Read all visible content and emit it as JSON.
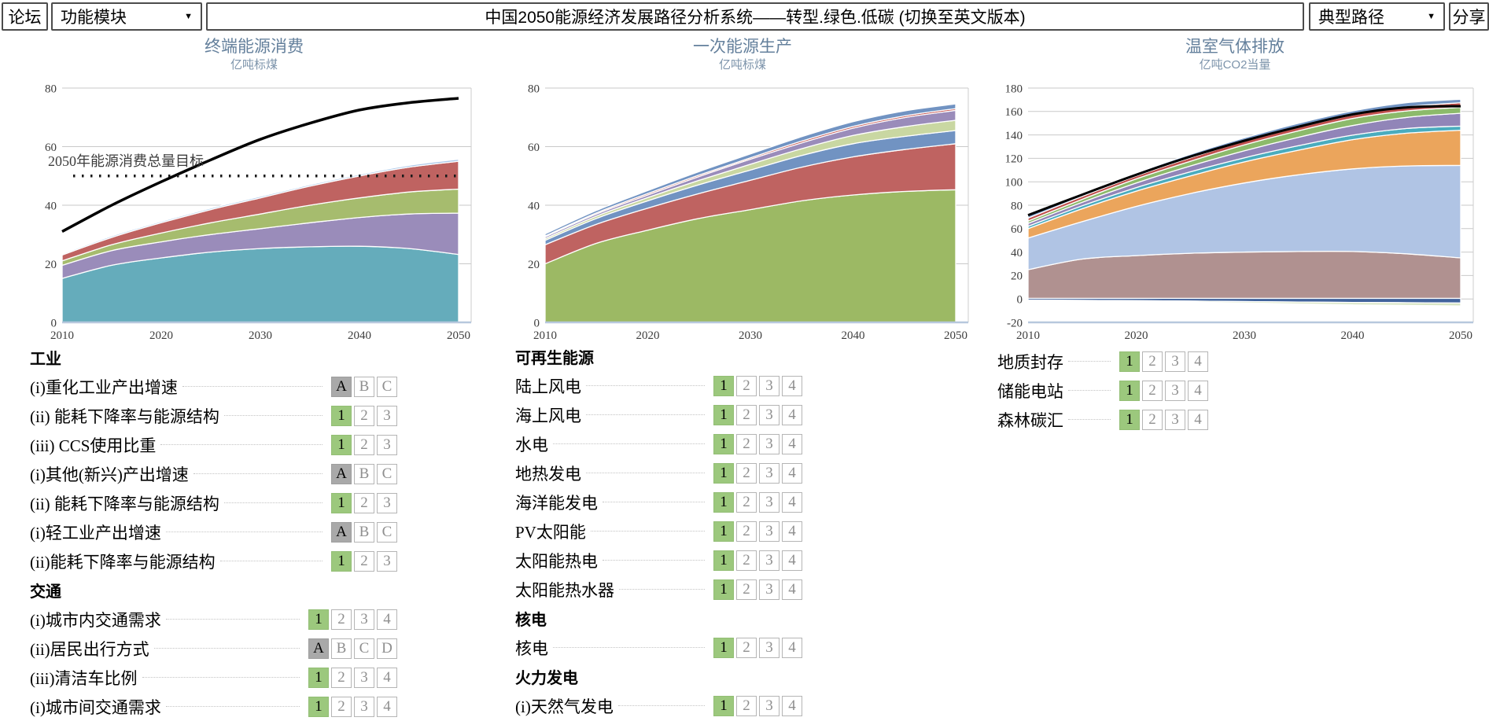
{
  "topbar": {
    "forum": "论坛",
    "modules": "功能模块",
    "title": "中国2050能源经济发展路径分析系统——转型.绿色.低碳 (切换至英文版本)",
    "paths": "典型路径",
    "share": "分享",
    "dropdown_icon": "▼"
  },
  "chart_data": [
    {
      "type": "area",
      "id": "final-energy-consumption",
      "title": "终端能源消费",
      "unit": "亿吨标煤",
      "x": [
        2010,
        2015,
        2020,
        2025,
        2030,
        2035,
        2040,
        2045,
        2050
      ],
      "xticks": [
        2010,
        2020,
        2030,
        2040,
        2050
      ],
      "ylim": [
        0,
        80
      ],
      "yticks": [
        0,
        20,
        40,
        60,
        80
      ],
      "stacking": "values are cumulative stack tops",
      "layers": [
        {
          "name": "teal-band",
          "color": "#65acbb",
          "bottom": 0,
          "top": [
            15,
            19.5,
            22,
            24,
            25.2,
            25.8,
            26,
            25.2,
            23.2
          ]
        },
        {
          "name": "purple-band",
          "color": "#9a8cba",
          "bottom": "prev",
          "top": [
            19.5,
            24.5,
            27.5,
            30,
            32,
            34,
            35.8,
            37,
            37.3
          ]
        },
        {
          "name": "green-band",
          "color": "#a6bc6e",
          "bottom": "prev",
          "top": [
            21,
            26.5,
            30.5,
            34,
            37,
            40,
            42.5,
            44.5,
            45.5
          ]
        },
        {
          "name": "red-band",
          "color": "#bf6361",
          "bottom": "prev",
          "top": [
            23,
            29,
            34,
            38.5,
            42.5,
            46.5,
            50,
            53,
            55
          ]
        },
        {
          "name": "lightblue-band",
          "color": "#abc7e8",
          "bottom": "prev",
          "top": [
            23.4,
            29.5,
            34.5,
            39,
            43,
            47,
            50.5,
            53.6,
            55.7
          ]
        }
      ],
      "lines": [
        {
          "name": "reference-line",
          "color": "#000000",
          "width": 3.5,
          "values": [
            31,
            40,
            48,
            55.5,
            62.5,
            68,
            72.5,
            75,
            76.5
          ]
        }
      ],
      "target_line": {
        "value": 50,
        "label": "2050年能源消费总量目标"
      }
    },
    {
      "type": "area",
      "id": "primary-energy-production",
      "title": "一次能源生产",
      "unit": "亿吨标煤",
      "x": [
        2010,
        2015,
        2020,
        2025,
        2030,
        2035,
        2040,
        2045,
        2050
      ],
      "xticks": [
        2010,
        2020,
        2030,
        2040,
        2050
      ],
      "ylim": [
        0,
        80
      ],
      "yticks": [
        0,
        20,
        40,
        60,
        80
      ],
      "stacking": "values are cumulative stack tops",
      "layers": [
        {
          "name": "green-band",
          "color": "#9cb964",
          "bottom": 0,
          "top": [
            20,
            27,
            31.5,
            35.5,
            38.5,
            41.5,
            43.5,
            44.7,
            45.3
          ]
        },
        {
          "name": "red-band",
          "color": "#bf6361",
          "bottom": "prev",
          "top": [
            26.5,
            33.5,
            39,
            44,
            48.5,
            53,
            56.5,
            59,
            61
          ]
        },
        {
          "name": "blue-band",
          "color": "#7193c2",
          "bottom": "prev",
          "top": [
            28,
            35.5,
            41.5,
            47,
            52,
            57,
            61,
            63.5,
            65.5
          ]
        },
        {
          "name": "palegreen-band",
          "color": "#c9d7a2",
          "bottom": "prev",
          "top": [
            28.6,
            36.3,
            42.6,
            48.5,
            54,
            59.3,
            63.8,
            66.8,
            69
          ]
        },
        {
          "name": "purple-band",
          "color": "#9a8cba",
          "bottom": "prev",
          "top": [
            29.2,
            37,
            43.5,
            49.8,
            55.7,
            61.3,
            66.3,
            69.9,
            72.4
          ]
        },
        {
          "name": "red-stripe",
          "color": "#c0504d",
          "bottom": "prev",
          "top": [
            29.5,
            37.4,
            44,
            50.3,
            56.2,
            61.9,
            66.9,
            70.5,
            73
          ]
        },
        {
          "name": "blue-top-band",
          "color": "#7193c2",
          "bottom": "prev",
          "top": [
            30.2,
            38.2,
            45,
            51.5,
            57.5,
            63.4,
            68.5,
            72.2,
            74.6
          ]
        }
      ],
      "lines": []
    },
    {
      "type": "area",
      "id": "greenhouse-gas-emissions",
      "title": "温室气体排放",
      "unit": "亿吨CO2当量",
      "x": [
        2010,
        2015,
        2020,
        2025,
        2030,
        2035,
        2040,
        2045,
        2050
      ],
      "xticks": [
        2010,
        2020,
        2030,
        2040,
        2050
      ],
      "ylim": [
        -20,
        180
      ],
      "yticks": [
        -20,
        0,
        20,
        40,
        60,
        80,
        100,
        120,
        140,
        160,
        180
      ],
      "stacking": "values are cumulative stack tops; negative layers stack downward",
      "layers": [
        {
          "name": "mauve-band",
          "color": "#b09190",
          "bottom": 0.5,
          "top": [
            25,
            34,
            37,
            39,
            40,
            40.5,
            40.5,
            38.5,
            35
          ]
        },
        {
          "name": "periwinkle-band",
          "color": "#b0c4e4",
          "bottom": "prev",
          "top": [
            52,
            66,
            79,
            90,
            99,
            106,
            111,
            113.5,
            114
          ]
        },
        {
          "name": "orange-band",
          "color": "#eba55c",
          "bottom": "prev",
          "top": [
            60,
            77,
            92,
            105,
            117,
            127,
            136,
            141.5,
            144
          ]
        },
        {
          "name": "teal-stripe",
          "color": "#4aacbe",
          "bottom": "prev",
          "top": [
            62,
            79.5,
            95,
            108.5,
            120.5,
            130.8,
            139.8,
            145.5,
            147.5
          ]
        },
        {
          "name": "purple-band",
          "color": "#9185b8",
          "bottom": "prev",
          "top": [
            64.5,
            82.5,
            99,
            113.5,
            126.5,
            138,
            148,
            155,
            158.5
          ]
        },
        {
          "name": "green-band",
          "color": "#8cba6b",
          "bottom": "prev",
          "top": [
            66.5,
            85,
            102.5,
            117.5,
            131.5,
            143.5,
            154,
            160.5,
            163.5
          ]
        },
        {
          "name": "red-stripe",
          "color": "#c0504d",
          "bottom": "prev",
          "top": [
            69,
            87.5,
            105,
            120.5,
            134.5,
            146.5,
            157,
            164,
            167.5
          ]
        },
        {
          "name": "blue-top-band",
          "color": "#7193c2",
          "bottom": "prev",
          "top": [
            71,
            90,
            107.5,
            123.5,
            137.5,
            150,
            160.5,
            167.5,
            170.5
          ]
        },
        {
          "name": "sequestration-dark-blue-band",
          "color": "#41639c",
          "bottom": [
            -1,
            -1.2,
            -1.5,
            -1.8,
            -2.2,
            -2.6,
            -3,
            -3.2,
            -3.5
          ],
          "top": 0.5
        },
        {
          "name": "sink-light-green-band",
          "color": "#d9e6c5",
          "bottom": [
            -1.3,
            -1.6,
            -2.1,
            -2.7,
            -3.4,
            -4.2,
            -5,
            -5.5,
            -6
          ],
          "top": [
            -1,
            -1.2,
            -1.5,
            -1.8,
            -2.2,
            -2.6,
            -3,
            -3.2,
            -3.5
          ]
        }
      ],
      "lines": [
        {
          "name": "reference-line",
          "color": "#000000",
          "width": 3,
          "values": [
            71.5,
            89,
            106,
            121.5,
            135,
            147,
            157.5,
            163.5,
            164.5
          ]
        }
      ]
    }
  ],
  "controls": {
    "selected_colors": {
      "green": "#9cc87d",
      "gray": "#a9a9a9"
    },
    "columns": [
      {
        "sections": [
          {
            "header": "工业",
            "rows": [
              {
                "label": "(i)重化工业产出增速",
                "options": [
                  "A",
                  "B",
                  "C"
                ],
                "selected": 0,
                "scheme": "gray"
              },
              {
                "label": "(ii) 能耗下降率与能源结构",
                "options": [
                  "1",
                  "2",
                  "3"
                ],
                "selected": 0,
                "scheme": "green"
              },
              {
                "label": "(iii) CCS使用比重",
                "options": [
                  "1",
                  "2",
                  "3"
                ],
                "selected": 0,
                "scheme": "green"
              },
              {
                "label": "(i)其他(新兴)产出增速",
                "options": [
                  "A",
                  "B",
                  "C"
                ],
                "selected": 0,
                "scheme": "gray"
              },
              {
                "label": "(ii) 能耗下降率与能源结构",
                "options": [
                  "1",
                  "2",
                  "3"
                ],
                "selected": 0,
                "scheme": "green"
              },
              {
                "label": "(i)轻工业产出增速",
                "options": [
                  "A",
                  "B",
                  "C"
                ],
                "selected": 0,
                "scheme": "gray"
              },
              {
                "label": "(ii)能耗下降率与能源结构",
                "options": [
                  "1",
                  "2",
                  "3"
                ],
                "selected": 0,
                "scheme": "green"
              }
            ]
          },
          {
            "header": "交通",
            "rows": [
              {
                "label": "(i)城市内交通需求",
                "options": [
                  "1",
                  "2",
                  "3",
                  "4"
                ],
                "selected": 0,
                "scheme": "green"
              },
              {
                "label": "(ii)居民出行方式",
                "options": [
                  "A",
                  "B",
                  "C",
                  "D"
                ],
                "selected": 0,
                "scheme": "gray"
              },
              {
                "label": "(iii)清洁车比例",
                "options": [
                  "1",
                  "2",
                  "3",
                  "4"
                ],
                "selected": 0,
                "scheme": "green"
              },
              {
                "label": "(i)城市间交通需求",
                "options": [
                  "1",
                  "2",
                  "3",
                  "4"
                ],
                "selected": 0,
                "scheme": "green"
              }
            ]
          }
        ]
      },
      {
        "sections": [
          {
            "header": "可再生能源",
            "rows": [
              {
                "label": "陆上风电",
                "options": [
                  "1",
                  "2",
                  "3",
                  "4"
                ],
                "selected": 0,
                "scheme": "green"
              },
              {
                "label": "海上风电",
                "options": [
                  "1",
                  "2",
                  "3",
                  "4"
                ],
                "selected": 0,
                "scheme": "green"
              },
              {
                "label": "水电",
                "options": [
                  "1",
                  "2",
                  "3",
                  "4"
                ],
                "selected": 0,
                "scheme": "green"
              },
              {
                "label": "地热发电",
                "options": [
                  "1",
                  "2",
                  "3",
                  "4"
                ],
                "selected": 0,
                "scheme": "green"
              },
              {
                "label": "海洋能发电",
                "options": [
                  "1",
                  "2",
                  "3",
                  "4"
                ],
                "selected": 0,
                "scheme": "green"
              },
              {
                "label": "PV太阳能",
                "options": [
                  "1",
                  "2",
                  "3",
                  "4"
                ],
                "selected": 0,
                "scheme": "green"
              },
              {
                "label": "太阳能热电",
                "options": [
                  "1",
                  "2",
                  "3",
                  "4"
                ],
                "selected": 0,
                "scheme": "green"
              },
              {
                "label": "太阳能热水器",
                "options": [
                  "1",
                  "2",
                  "3",
                  "4"
                ],
                "selected": 0,
                "scheme": "green"
              }
            ]
          },
          {
            "header": "核电",
            "rows": [
              {
                "label": "核电",
                "options": [
                  "1",
                  "2",
                  "3",
                  "4"
                ],
                "selected": 0,
                "scheme": "green"
              }
            ]
          },
          {
            "header": "火力发电",
            "rows": [
              {
                "label": "(i)天然气发电",
                "options": [
                  "1",
                  "2",
                  "3",
                  "4"
                ],
                "selected": 0,
                "scheme": "green"
              }
            ]
          }
        ]
      },
      {
        "sections": [
          {
            "header": "",
            "rows": [
              {
                "label": "地质封存",
                "options": [
                  "1",
                  "2",
                  "3",
                  "4"
                ],
                "selected": 0,
                "scheme": "green"
              },
              {
                "label": "储能电站",
                "options": [
                  "1",
                  "2",
                  "3",
                  "4"
                ],
                "selected": 0,
                "scheme": "green"
              },
              {
                "label": "森林碳汇",
                "options": [
                  "1",
                  "2",
                  "3",
                  "4"
                ],
                "selected": 0,
                "scheme": "green"
              }
            ]
          }
        ]
      }
    ]
  }
}
